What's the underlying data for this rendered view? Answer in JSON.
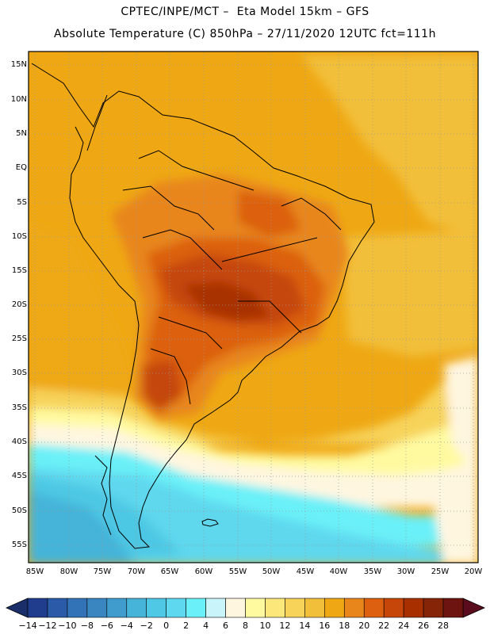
{
  "header": {
    "title_line1": "CPTEC/INPE/MCT –  Eta Model 15km – GFS",
    "title_line2": "Absolute Temperature (C) 850hPa – 27/11/2020 12UTC fct=111h"
  },
  "map": {
    "lat_labels": [
      "15N",
      "10N",
      "5N",
      "EQ",
      "5S",
      "10S",
      "15S",
      "20S",
      "25S",
      "30S",
      "35S",
      "40S",
      "45S",
      "50S",
      "55S"
    ],
    "lon_labels": [
      "85W",
      "80W",
      "75W",
      "70W",
      "65W",
      "60W",
      "55W",
      "50W",
      "45W",
      "40W",
      "35W",
      "30W",
      "25W",
      "20W"
    ]
  },
  "colorbar": {
    "labels": [
      "-14",
      "-12",
      "-10",
      "-8",
      "-6",
      "-4",
      "-2",
      "0",
      "2",
      "4",
      "6",
      "8",
      "10",
      "12",
      "14",
      "16",
      "18",
      "20",
      "22",
      "24",
      "26",
      "28"
    ],
    "colors": [
      "#203c8c",
      "#2a5aa8",
      "#3272b6",
      "#3a86c0",
      "#3f9ccc",
      "#45b4d8",
      "#4ec8e4",
      "#5ed8ee",
      "#6af0f8",
      "#c8f4fa",
      "#fff6e0",
      "#fffaa0",
      "#fbe77a",
      "#f7d35a",
      "#f2bf3a",
      "#efa814",
      "#e8861c",
      "#dc6010",
      "#c54608",
      "#a83000",
      "#862408",
      "#6e1410"
    ],
    "left_arrow_color": "#1a2f6a",
    "right_arrow_color": "#5a0c1c"
  }
}
